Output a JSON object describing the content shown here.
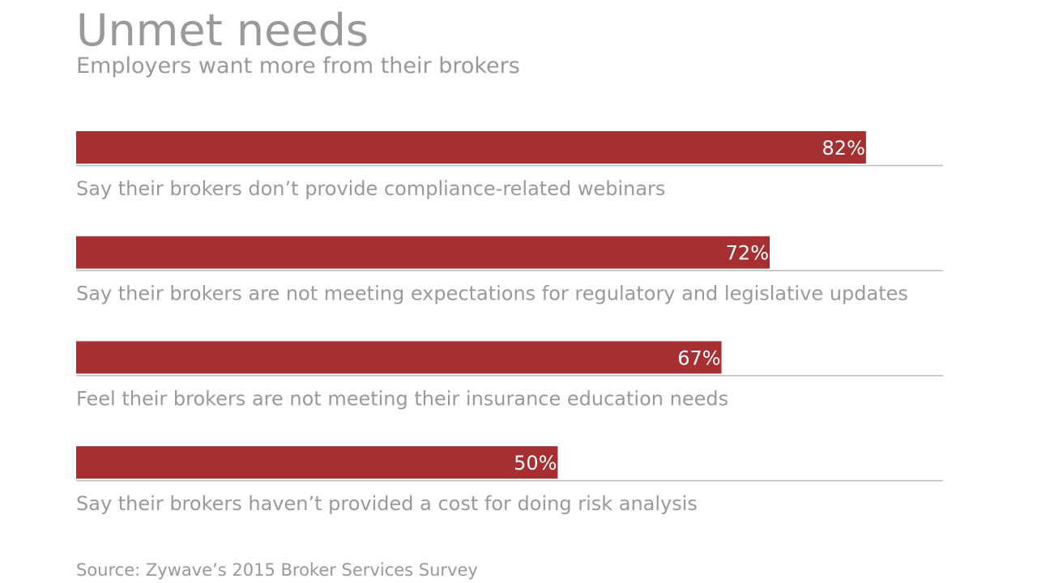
{
  "title": "Unmet needs",
  "subtitle": "Employers want more from their brokers",
  "source": "Source: Zywave’s 2015 Broker Services Survey",
  "colors": {
    "bar": "#a52f31",
    "text": "#999999",
    "rule": "#bbbbbb",
    "bar_label": "#ffffff"
  },
  "chart_data": {
    "type": "bar",
    "orientation": "horizontal",
    "categories": [
      "Say their brokers don’t provide compliance-related webinars",
      "Say their brokers are not meeting expectations for regulatory and legislative updates",
      "Feel their brokers are not meeting their insurance education needs",
      "Say their brokers haven’t provided a cost for doing risk analysis"
    ],
    "values": [
      82,
      72,
      67,
      50
    ],
    "value_labels": [
      "82%",
      "72%",
      "67%",
      "50%"
    ],
    "xlim": [
      0,
      90
    ],
    "unit": "%",
    "grid": false
  }
}
